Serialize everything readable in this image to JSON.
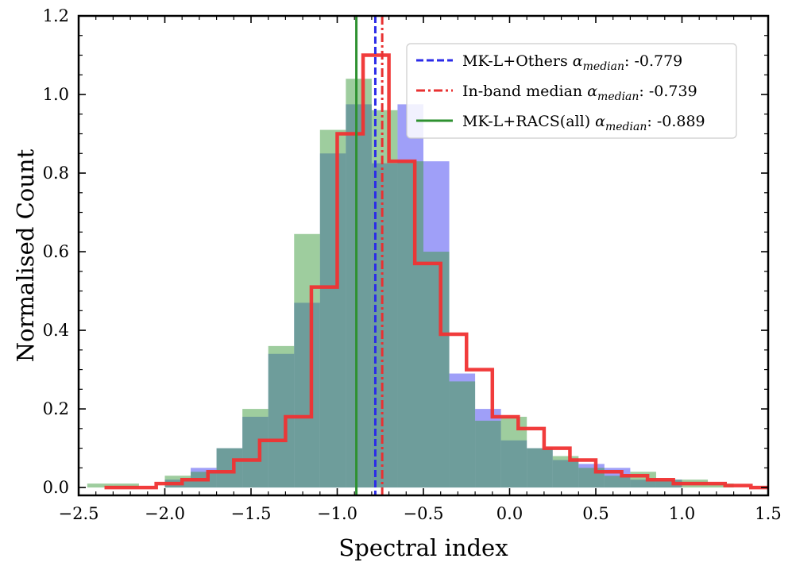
{
  "chart_data": {
    "type": "histogram",
    "xlabel": "Spectral index",
    "ylabel": "Normalised Count",
    "xlim": [
      -2.5,
      1.5
    ],
    "ylim": [
      -0.02,
      1.2
    ],
    "xticks": [
      -2.5,
      -2.0,
      -1.5,
      -1.0,
      -0.5,
      0.0,
      0.5,
      1.0,
      1.5
    ],
    "xtick_labels": [
      "−2.5",
      "−2.0",
      "−1.5",
      "−1.0",
      "−0.5",
      "0.0",
      "0.5",
      "1.0",
      "1.5"
    ],
    "yticks": [
      0.0,
      0.2,
      0.4,
      0.6,
      0.8,
      1.0,
      1.2
    ],
    "ytick_labels": [
      "0.0",
      "0.2",
      "0.4",
      "0.6",
      "0.8",
      "1.0",
      "1.2"
    ],
    "series": [
      {
        "name": "MK-L+Others",
        "style": "filled",
        "color": "#6c6cf5",
        "opacity": 0.65,
        "edges": [
          -2.0,
          -1.85,
          -1.7,
          -1.55,
          -1.4,
          -1.25,
          -1.1,
          -0.95,
          -0.8,
          -0.65,
          -0.5,
          -0.35,
          -0.2,
          -0.05,
          0.1,
          0.25,
          0.4,
          0.55,
          0.7,
          0.85,
          1.0
        ],
        "values": [
          0.02,
          0.05,
          0.1,
          0.18,
          0.34,
          0.47,
          0.85,
          0.975,
          0.825,
          0.975,
          0.83,
          0.29,
          0.2,
          0.12,
          0.1,
          0.07,
          0.06,
          0.05,
          0.02,
          0.02
        ]
      },
      {
        "name": "MK-L+RACS(all)",
        "style": "filled",
        "color": "#3d9c3d",
        "opacity": 0.5,
        "edges": [
          -2.45,
          -2.3,
          -2.15,
          -2.0,
          -1.85,
          -1.7,
          -1.55,
          -1.4,
          -1.25,
          -1.1,
          -0.95,
          -0.8,
          -0.65,
          -0.5,
          -0.35,
          -0.2,
          -0.05,
          0.1,
          0.25,
          0.4,
          0.55,
          0.7,
          0.85,
          1.0,
          1.15,
          1.3,
          1.45
        ],
        "values": [
          0.01,
          0.01,
          0.0,
          0.03,
          0.04,
          0.1,
          0.2,
          0.36,
          0.645,
          0.91,
          1.04,
          0.96,
          0.83,
          0.6,
          0.27,
          0.17,
          0.18,
          0.1,
          0.08,
          0.05,
          0.03,
          0.04,
          0.02,
          0.02,
          0.01,
          0.0
        ]
      },
      {
        "name": "In-band",
        "style": "step",
        "color": "#f03232",
        "edges": [
          -2.35,
          -2.2,
          -2.05,
          -1.9,
          -1.75,
          -1.6,
          -1.45,
          -1.3,
          -1.15,
          -1.0,
          -0.85,
          -0.7,
          -0.55,
          -0.4,
          -0.25,
          -0.1,
          0.05,
          0.2,
          0.35,
          0.5,
          0.65,
          0.8,
          0.95,
          1.1,
          1.25,
          1.4,
          1.55
        ],
        "values": [
          0.0,
          0.0,
          0.01,
          0.02,
          0.04,
          0.07,
          0.12,
          0.18,
          0.51,
          0.9,
          1.1,
          0.83,
          0.57,
          0.39,
          0.3,
          0.18,
          0.15,
          0.1,
          0.07,
          0.04,
          0.03,
          0.02,
          0.01,
          0.01,
          0.005,
          0.0
        ]
      }
    ],
    "vlines": [
      {
        "name": "MK-L+Others",
        "x": -0.779,
        "color": "#2b2be8",
        "dash": "dashed"
      },
      {
        "name": "In-band median",
        "x": -0.739,
        "color": "#e83232",
        "dash": "dashdot"
      },
      {
        "name": "MK-L+RACS(all)",
        "x": -0.889,
        "color": "#2e9130",
        "dash": "solid"
      }
    ],
    "legend": {
      "position": "upper right",
      "entries": [
        {
          "label": "MK-L+Others αmedian: -0.779",
          "prefix": "MK-L+Others ",
          "sub": "median",
          "suffix": ": -0.779",
          "color": "#2b2be8",
          "dash": "dashed"
        },
        {
          "label": "In-band median αmedian: -0.739",
          "prefix": "In-band median ",
          "sub": "median",
          "suffix": ": -0.739",
          "color": "#e83232",
          "dash": "dashdot"
        },
        {
          "label": "MK-L+RACS(all) αmedian: -0.889",
          "prefix": "MK-L+RACS(all) ",
          "sub": "median",
          "suffix": ": -0.889",
          "color": "#2e9130",
          "dash": "solid"
        }
      ]
    }
  }
}
